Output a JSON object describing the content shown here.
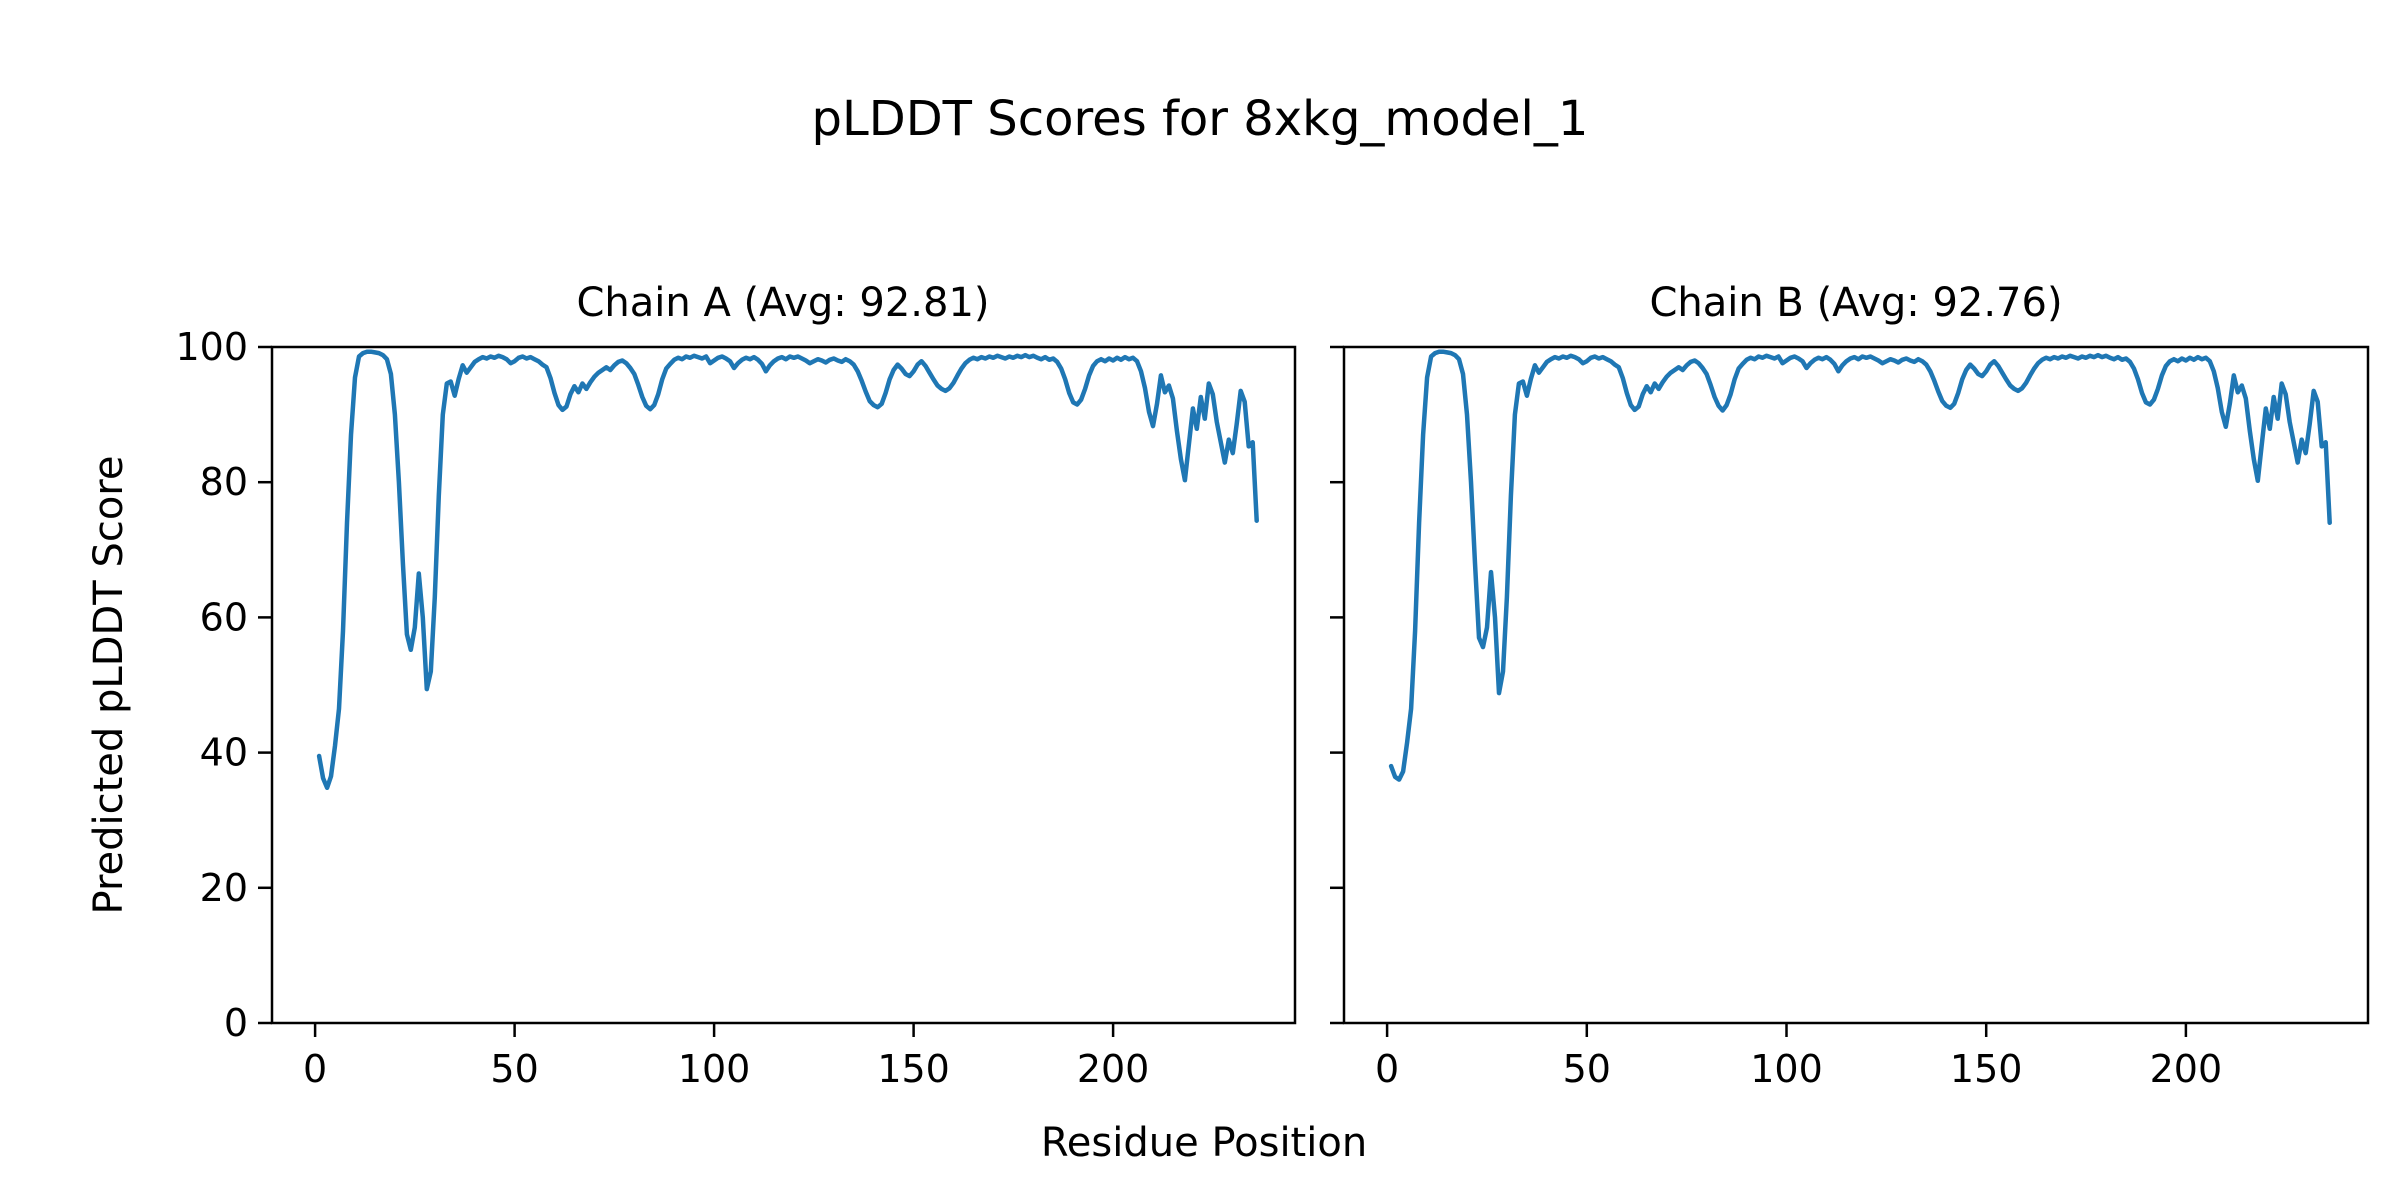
{
  "figure": {
    "title": "pLDDT Scores for 8xkg_model_1",
    "xlabel": "Residue Position",
    "ylabel": "Predicted pLDDT Score",
    "line_color": "#1f77b4",
    "axis_color": "#000000",
    "background_color": "#ffffff"
  },
  "chart_data": [
    {
      "type": "line",
      "title": "Chain A (Avg: 92.81)",
      "avg_label": 92.81,
      "series_name": "Chain A pLDDT",
      "x_start": 1,
      "xlim": [
        -10.8,
        245.6
      ],
      "ylim": [
        0,
        100
      ],
      "xticks": [
        0,
        50,
        100,
        150,
        200
      ],
      "yticks": [
        0,
        20,
        40,
        60,
        80,
        100
      ],
      "grid": false,
      "show_y_tick_labels": true,
      "values": [
        39.5,
        36.2,
        34.8,
        36.5,
        41.0,
        46.5,
        58.0,
        74.0,
        87.0,
        95.5,
        98.6,
        99.1,
        99.3,
        99.3,
        99.2,
        99.1,
        98.8,
        98.2,
        96.0,
        90.0,
        80.0,
        68.0,
        57.5,
        55.2,
        58.5,
        66.5,
        60.0,
        49.4,
        52.0,
        63.0,
        78.0,
        90.0,
        94.6,
        94.9,
        92.8,
        95.3,
        97.3,
        96.2,
        97.0,
        97.8,
        98.2,
        98.5,
        98.3,
        98.6,
        98.4,
        98.7,
        98.5,
        98.2,
        97.6,
        97.9,
        98.4,
        98.6,
        98.3,
        98.5,
        98.2,
        97.9,
        97.4,
        97.0,
        95.4,
        93.2,
        91.4,
        90.7,
        91.2,
        93.0,
        94.2,
        93.3,
        94.6,
        93.8,
        94.8,
        95.6,
        96.2,
        96.6,
        97.0,
        96.6,
        97.3,
        97.8,
        98.0,
        97.6,
        96.9,
        96.0,
        94.4,
        92.6,
        91.3,
        90.8,
        91.4,
        93.0,
        95.2,
        96.8,
        97.5,
        98.1,
        98.4,
        98.2,
        98.6,
        98.4,
        98.7,
        98.5,
        98.3,
        98.6,
        97.6,
        98.0,
        98.4,
        98.6,
        98.3,
        97.9,
        96.9,
        97.6,
        98.1,
        98.4,
        98.2,
        98.5,
        98.1,
        97.5,
        96.4,
        97.3,
        97.9,
        98.3,
        98.5,
        98.2,
        98.6,
        98.4,
        98.6,
        98.3,
        98.0,
        97.6,
        97.9,
        98.2,
        98.0,
        97.7,
        98.1,
        98.3,
        98.0,
        97.8,
        98.2,
        97.9,
        97.4,
        96.4,
        95.0,
        93.4,
        92.0,
        91.4,
        91.1,
        91.6,
        93.2,
        95.2,
        96.6,
        97.4,
        96.8,
        96.0,
        95.7,
        96.4,
        97.4,
        97.9,
        97.2,
        96.2,
        95.2,
        94.3,
        93.8,
        93.5,
        93.9,
        94.7,
        95.8,
        96.8,
        97.6,
        98.1,
        98.4,
        98.2,
        98.5,
        98.3,
        98.6,
        98.4,
        98.7,
        98.5,
        98.3,
        98.6,
        98.4,
        98.7,
        98.5,
        98.8,
        98.5,
        98.7,
        98.4,
        98.2,
        98.5,
        98.1,
        98.3,
        97.8,
        96.8,
        95.2,
        93.2,
        91.8,
        91.5,
        92.2,
        93.8,
        95.8,
        97.2,
        97.9,
        98.2,
        97.9,
        98.3,
        98.0,
        98.4,
        98.1,
        98.5,
        98.2,
        98.4,
        97.9,
        96.4,
        93.9,
        90.4,
        88.3,
        91.6,
        95.8,
        93.3,
        94.3,
        92.4,
        87.6,
        83.4,
        80.3,
        85.6,
        90.9,
        87.9,
        92.6,
        89.4,
        94.6,
        93.0,
        88.9,
        85.9,
        82.9,
        86.3,
        84.3,
        88.6,
        93.5,
        91.9,
        85.3,
        85.9,
        74.3
      ]
    },
    {
      "type": "line",
      "title": "Chain B (Avg: 92.76)",
      "avg_label": 92.76,
      "series_name": "Chain B pLDDT",
      "x_start": 1,
      "xlim": [
        -10.8,
        245.6
      ],
      "ylim": [
        0,
        100
      ],
      "xticks": [
        0,
        50,
        100,
        150,
        200
      ],
      "yticks": [
        0,
        20,
        40,
        60,
        80,
        100
      ],
      "grid": false,
      "show_y_tick_labels": false,
      "values": [
        38.0,
        36.4,
        36.0,
        37.2,
        41.5,
        46.5,
        58.0,
        74.0,
        87.0,
        95.5,
        98.6,
        99.1,
        99.3,
        99.3,
        99.2,
        99.1,
        98.8,
        98.2,
        96.0,
        90.0,
        80.0,
        68.0,
        57.0,
        55.6,
        58.5,
        66.7,
        60.0,
        48.8,
        52.0,
        63.0,
        78.0,
        90.0,
        94.6,
        94.9,
        92.8,
        95.3,
        97.3,
        96.2,
        97.0,
        97.8,
        98.2,
        98.5,
        98.3,
        98.6,
        98.4,
        98.7,
        98.5,
        98.2,
        97.6,
        97.9,
        98.4,
        98.6,
        98.3,
        98.5,
        98.2,
        97.9,
        97.4,
        97.0,
        95.4,
        93.2,
        91.4,
        90.7,
        91.2,
        93.0,
        94.2,
        93.3,
        94.6,
        93.8,
        94.8,
        95.6,
        96.2,
        96.6,
        97.0,
        96.6,
        97.3,
        97.8,
        98.0,
        97.6,
        96.9,
        96.0,
        94.4,
        92.6,
        91.3,
        90.6,
        91.4,
        93.0,
        95.2,
        96.8,
        97.5,
        98.1,
        98.4,
        98.2,
        98.6,
        98.4,
        98.7,
        98.5,
        98.3,
        98.6,
        97.6,
        98.0,
        98.4,
        98.6,
        98.3,
        97.9,
        96.9,
        97.6,
        98.1,
        98.4,
        98.2,
        98.5,
        98.1,
        97.5,
        96.4,
        97.3,
        97.9,
        98.3,
        98.5,
        98.2,
        98.6,
        98.4,
        98.6,
        98.3,
        98.0,
        97.6,
        97.9,
        98.2,
        98.0,
        97.7,
        98.1,
        98.3,
        98.0,
        97.8,
        98.2,
        97.9,
        97.4,
        96.4,
        95.0,
        93.4,
        92.0,
        91.3,
        91.0,
        91.6,
        93.2,
        95.2,
        96.6,
        97.4,
        96.8,
        96.0,
        95.7,
        96.4,
        97.4,
        97.9,
        97.2,
        96.2,
        95.2,
        94.3,
        93.8,
        93.5,
        93.9,
        94.7,
        95.8,
        96.8,
        97.6,
        98.1,
        98.4,
        98.2,
        98.5,
        98.3,
        98.6,
        98.4,
        98.7,
        98.5,
        98.3,
        98.6,
        98.4,
        98.7,
        98.5,
        98.8,
        98.5,
        98.7,
        98.4,
        98.2,
        98.5,
        98.1,
        98.3,
        97.8,
        96.8,
        95.2,
        93.2,
        91.8,
        91.5,
        92.2,
        93.8,
        95.8,
        97.2,
        97.9,
        98.2,
        97.9,
        98.3,
        98.0,
        98.4,
        98.1,
        98.5,
        98.2,
        98.4,
        97.9,
        96.4,
        93.9,
        90.4,
        88.2,
        91.6,
        95.8,
        93.3,
        94.3,
        92.4,
        87.6,
        83.4,
        80.2,
        85.6,
        90.9,
        87.9,
        92.6,
        89.4,
        94.6,
        93.0,
        88.9,
        85.9,
        82.9,
        86.3,
        84.3,
        88.6,
        93.5,
        91.9,
        85.3,
        85.9,
        74.0
      ]
    }
  ]
}
